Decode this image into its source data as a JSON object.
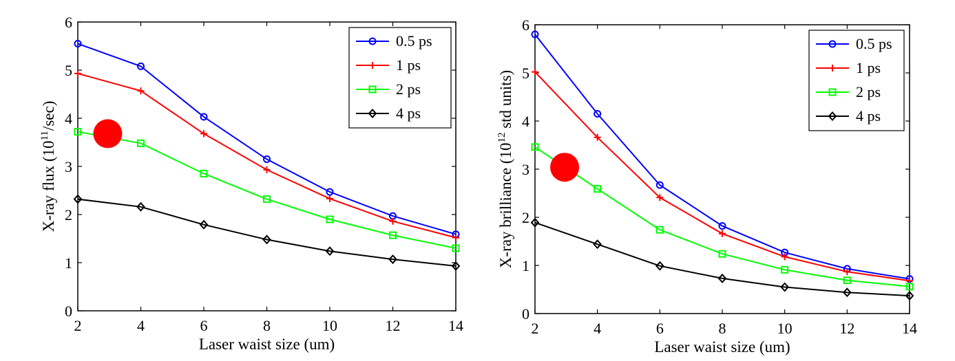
{
  "chart_data": [
    {
      "type": "line",
      "title": "",
      "xlabel": "Laser waist size (um)",
      "ylabel": "X-ray flux (10",
      "ylabel_sup": "11",
      "ylabel_tail": "/sec)",
      "x": [
        2,
        4,
        6,
        8,
        10,
        12,
        14
      ],
      "xlim": [
        2,
        14
      ],
      "ylim": [
        0,
        6
      ],
      "xticks": [
        "2",
        "4",
        "6",
        "8",
        "10",
        "12",
        "14"
      ],
      "yticks": [
        "0",
        "1",
        "2",
        "3",
        "4",
        "5",
        "6"
      ],
      "grid": false,
      "legend_position": "top-right",
      "series": [
        {
          "name": "0.5 ps",
          "color": "#0000ff",
          "marker": "circle",
          "values": [
            5.55,
            5.08,
            4.03,
            3.15,
            2.47,
            1.97,
            1.59
          ]
        },
        {
          "name": "1 ps",
          "color": "#ff0000",
          "marker": "plus",
          "values": [
            4.93,
            4.57,
            3.68,
            2.93,
            2.33,
            1.86,
            1.52
          ]
        },
        {
          "name": "2 ps",
          "color": "#00ff00",
          "marker": "square",
          "values": [
            3.72,
            3.48,
            2.85,
            2.32,
            1.9,
            1.57,
            1.3
          ]
        },
        {
          "name": "4 ps",
          "color": "#000000",
          "marker": "diamond",
          "values": [
            2.32,
            2.16,
            1.79,
            1.48,
            1.24,
            1.07,
            0.93
          ]
        }
      ],
      "annotation": {
        "type": "filled-circle",
        "color": "#ff0000",
        "x": 2.95,
        "y": 3.68
      }
    },
    {
      "type": "line",
      "title": "",
      "xlabel": "Laser waist size (um)",
      "ylabel": "X-ray brilliance (10",
      "ylabel_sup": "12",
      "ylabel_tail": " std units)",
      "x": [
        2,
        4,
        6,
        8,
        10,
        12,
        14
      ],
      "xlim": [
        2,
        14
      ],
      "ylim": [
        0,
        6
      ],
      "xticks": [
        "2",
        "4",
        "6",
        "8",
        "10",
        "12",
        "14"
      ],
      "yticks": [
        "0",
        "1",
        "2",
        "3",
        "4",
        "5",
        "6"
      ],
      "grid": false,
      "legend_position": "top-right",
      "series": [
        {
          "name": "0.5 ps",
          "color": "#0000ff",
          "marker": "circle",
          "values": [
            5.8,
            4.15,
            2.67,
            1.82,
            1.27,
            0.93,
            0.72
          ]
        },
        {
          "name": "1 ps",
          "color": "#ff0000",
          "marker": "plus",
          "values": [
            5.02,
            3.66,
            2.41,
            1.66,
            1.18,
            0.87,
            0.68
          ]
        },
        {
          "name": "2 ps",
          "color": "#00ff00",
          "marker": "square",
          "values": [
            3.46,
            2.59,
            1.74,
            1.24,
            0.91,
            0.69,
            0.56
          ]
        },
        {
          "name": "4 ps",
          "color": "#000000",
          "marker": "diamond",
          "values": [
            1.89,
            1.44,
            0.99,
            0.73,
            0.55,
            0.44,
            0.37
          ]
        }
      ],
      "annotation": {
        "type": "filled-circle",
        "color": "#ff0000",
        "x": 2.95,
        "y": 3.04
      }
    }
  ]
}
